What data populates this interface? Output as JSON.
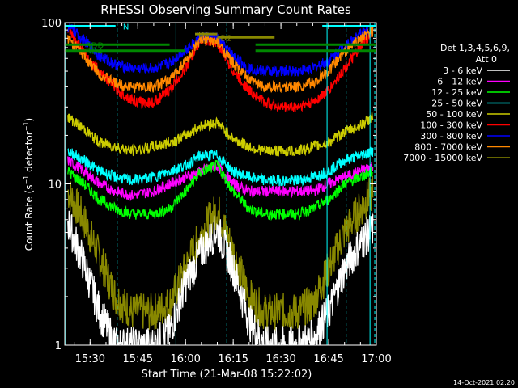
{
  "chart_data": {
    "type": "line",
    "title": "RHESSI Observing Summary Count Rates",
    "ylabel": "Count Rate (s⁻¹ detector⁻¹)",
    "ylabel_main": "Count Rate (s",
    "ylabel_sup1": "−1",
    "ylabel_mid": " detector",
    "ylabel_sup2": "−1",
    "ylabel_end": ")",
    "xlabel": "Start Time (21-Mar-08 15:22:02)",
    "y_scale": "log",
    "ylim": [
      1,
      100
    ],
    "xlim": [
      "15:22:02",
      "17:00:00"
    ],
    "x_ticks": [
      "15:30",
      "15:45",
      "16:00",
      "16:15",
      "16:30",
      "16:45",
      "17:00"
    ],
    "y_ticks": [
      "1",
      "10",
      "100"
    ],
    "grid": false,
    "legend_header": [
      "Det 1,3,4,5,6,9,",
      "Att 0"
    ],
    "series": [
      {
        "name": "3 - 6 keV",
        "color": "#ffffff",
        "x": [
          "15:23",
          "15:28",
          "15:33",
          "15:38",
          "15:43",
          "15:50",
          "15:55",
          "16:00",
          "16:05",
          "16:10",
          "16:15",
          "16:20",
          "16:25",
          "16:30",
          "16:35",
          "16:40",
          "16:45",
          "16:50",
          "16:55",
          "16:59"
        ],
        "y": [
          5.8,
          3.2,
          1.6,
          1.0,
          1.0,
          1.0,
          1.2,
          2.4,
          3.8,
          5.2,
          3.0,
          1.4,
          1.0,
          1.0,
          1.0,
          1.1,
          1.6,
          3.0,
          4.3,
          5.3
        ]
      },
      {
        "name": "6 - 12 keV",
        "color": "#ff00ff",
        "x": [
          "15:23",
          "15:28",
          "15:33",
          "15:38",
          "15:43",
          "15:50",
          "15:55",
          "16:00",
          "16:05",
          "16:10",
          "16:15",
          "16:20",
          "16:25",
          "16:30",
          "16:35",
          "16:40",
          "16:45",
          "16:50",
          "16:55",
          "16:59"
        ],
        "y": [
          14,
          12,
          10,
          9,
          8.5,
          9,
          10,
          11,
          12,
          13,
          10,
          9,
          9,
          9,
          9,
          9,
          10,
          11,
          12,
          13
        ]
      },
      {
        "name": "12 - 25 keV",
        "color": "#00ff00",
        "x": [
          "15:23",
          "15:28",
          "15:33",
          "15:38",
          "15:43",
          "15:50",
          "15:55",
          "16:00",
          "16:05",
          "16:10",
          "16:15",
          "16:20",
          "16:25",
          "16:30",
          "16:35",
          "16:40",
          "16:45",
          "16:50",
          "16:55",
          "16:59"
        ],
        "y": [
          12,
          10,
          8,
          7,
          6.5,
          6.5,
          7,
          9,
          12,
          13,
          9,
          7,
          6.5,
          6.5,
          6.5,
          7,
          8,
          10,
          11,
          12
        ]
      },
      {
        "name": "25 - 50 keV",
        "color": "#00ffff",
        "x": [
          "15:23",
          "15:28",
          "15:33",
          "15:38",
          "15:43",
          "15:50",
          "15:55",
          "16:00",
          "16:05",
          "16:10",
          "16:15",
          "16:20",
          "16:25",
          "16:30",
          "16:35",
          "16:40",
          "16:45",
          "16:50",
          "16:55",
          "16:59"
        ],
        "y": [
          16,
          14,
          12,
          11,
          10.5,
          11,
          12,
          13,
          15,
          15,
          12,
          11,
          10.5,
          10.5,
          10.5,
          11,
          12,
          14,
          15,
          16
        ]
      },
      {
        "name": "50 - 100 keV",
        "color": "#cccc00",
        "x": [
          "15:23",
          "15:28",
          "15:33",
          "15:38",
          "15:43",
          "15:50",
          "15:55",
          "16:00",
          "16:05",
          "16:10",
          "16:15",
          "16:20",
          "16:25",
          "16:30",
          "16:35",
          "16:40",
          "16:45",
          "16:50",
          "16:55",
          "16:59"
        ],
        "y": [
          26,
          22,
          18,
          17,
          16,
          17,
          18,
          20,
          23,
          24,
          19,
          17,
          16,
          16,
          16,
          17,
          18,
          21,
          23,
          26
        ]
      },
      {
        "name": "100 - 300 keV",
        "color": "#ff0000",
        "x": [
          "15:23",
          "15:27",
          "15:31",
          "15:35",
          "15:40",
          "15:45",
          "15:50",
          "15:55",
          "16:00",
          "16:05",
          "16:10",
          "16:15",
          "16:20",
          "16:25",
          "16:30",
          "16:35",
          "16:40",
          "16:45",
          "16:50",
          "16:55",
          "16:59"
        ],
        "y": [
          90,
          70,
          55,
          45,
          36,
          32,
          32,
          38,
          52,
          80,
          75,
          50,
          38,
          32,
          30,
          30,
          32,
          38,
          52,
          70,
          90
        ]
      },
      {
        "name": "300 - 800 keV",
        "color": "#0000ff",
        "x": [
          "15:23",
          "15:28",
          "15:33",
          "15:38",
          "15:43",
          "15:50",
          "15:55",
          "16:00",
          "16:05",
          "16:10",
          "16:15",
          "16:20",
          "16:25",
          "16:30",
          "16:35",
          "16:40",
          "16:45",
          "16:50",
          "16:55",
          "16:59"
        ],
        "y": [
          95,
          78,
          62,
          55,
          52,
          52,
          56,
          68,
          82,
          80,
          62,
          52,
          50,
          50,
          50,
          52,
          58,
          72,
          85,
          92
        ]
      },
      {
        "name": "800 - 7000 keV",
        "color": "#ff8800",
        "x": [
          "15:23",
          "15:28",
          "15:33",
          "15:38",
          "15:43",
          "15:50",
          "15:55",
          "16:00",
          "16:05",
          "16:10",
          "16:15",
          "16:20",
          "16:25",
          "16:30",
          "16:35",
          "16:40",
          "16:45",
          "16:50",
          "16:55",
          "16:59"
        ],
        "y": [
          80,
          62,
          48,
          42,
          40,
          40,
          44,
          58,
          78,
          76,
          56,
          44,
          40,
          40,
          40,
          42,
          50,
          66,
          80,
          88
        ]
      },
      {
        "name": "7000 - 15000 keV",
        "color": "#888800",
        "x": [
          "15:23",
          "15:28",
          "15:33",
          "15:38",
          "15:43",
          "15:50",
          "15:55",
          "16:00",
          "16:05",
          "16:10",
          "16:15",
          "16:20",
          "16:25",
          "16:30",
          "16:35",
          "16:40",
          "16:45",
          "16:50",
          "16:55",
          "16:59"
        ],
        "y": [
          9,
          6,
          3.5,
          2.0,
          1.6,
          1.6,
          1.8,
          3.0,
          5.0,
          7.0,
          3.8,
          2.0,
          1.6,
          1.6,
          1.6,
          1.8,
          3.0,
          5.0,
          7.0,
          9.0
        ]
      }
    ],
    "flag_bars": [
      {
        "label": "N",
        "color": "#00ffff",
        "segments": [
          [
            "15:22",
            "15:38"
          ],
          [
            "16:43",
            "17:00"
          ]
        ],
        "level": 95
      },
      {
        "label": "D1",
        "color": "#888800",
        "segments": [
          [
            "16:03",
            "16:10"
          ]
        ],
        "level": 85
      },
      {
        "label": "D2",
        "color": "#888800",
        "segments": [
          [
            "16:10",
            "16:28"
          ]
        ],
        "level": 81
      },
      {
        "label": "RDD",
        "color": "#008800",
        "segments": [
          [
            "15:22",
            "15:55"
          ],
          [
            "16:22",
            "17:00"
          ]
        ],
        "level": 73
      },
      {
        "label": "RD4",
        "color": "#008800",
        "segments": [
          [
            "15:22",
            "16:00"
          ],
          [
            "16:22",
            "17:00"
          ]
        ],
        "level": 67
      }
    ],
    "vlines_solid": [
      "15:22:20",
      "15:57",
      "16:44:30",
      "16:58"
    ],
    "vlines_dashed": [
      "15:38:30",
      "16:13",
      "16:50:30",
      "16:59:30"
    ]
  },
  "footer_date": "14-Oct-2021 02:20"
}
